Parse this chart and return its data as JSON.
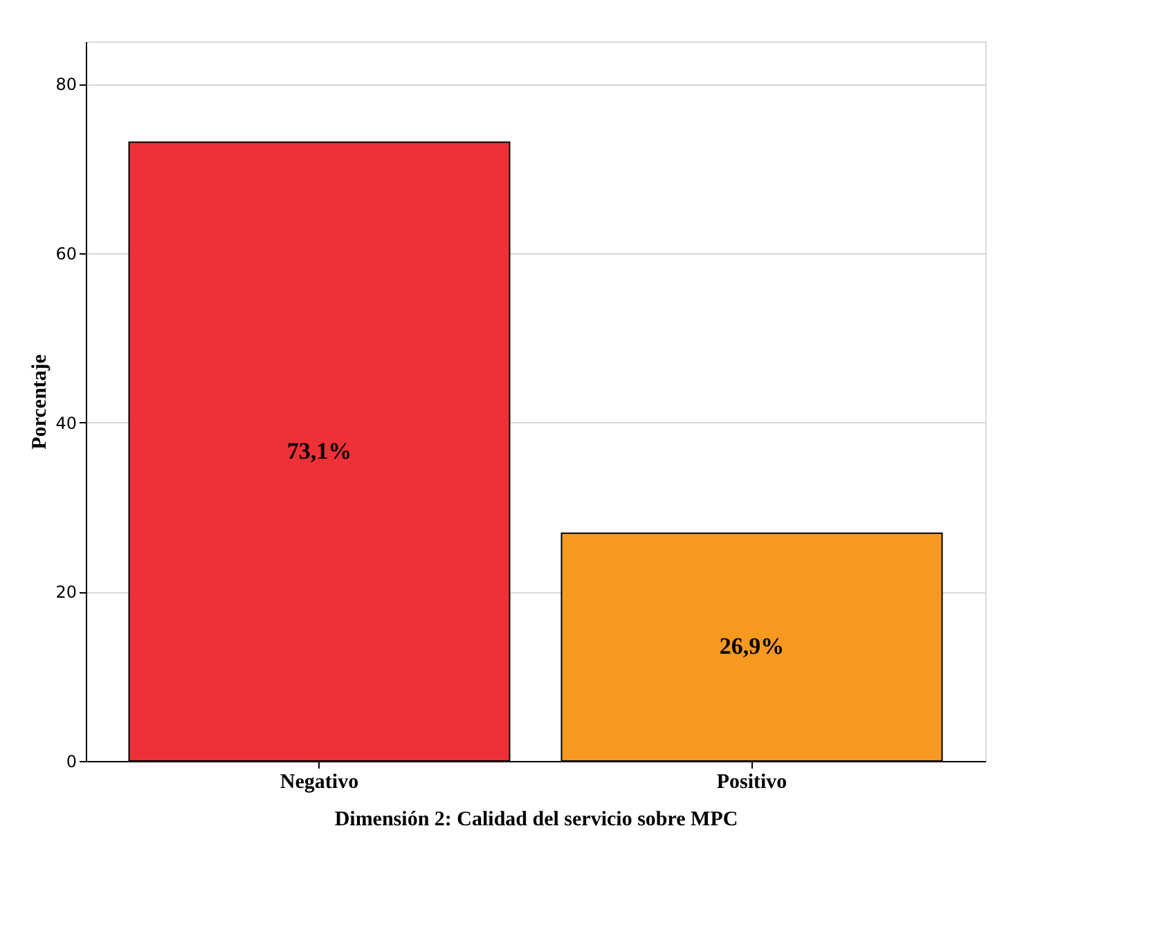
{
  "chart_data": {
    "type": "bar",
    "xlabel": "Dimensión 2: Calidad del servicio sobre MPC",
    "ylabel": "Porcentaje",
    "categories": [
      "Negativo",
      "Positivo"
    ],
    "values": [
      73.1,
      26.9
    ],
    "colors": [
      "#ee3138",
      "#f7981f"
    ],
    "value_labels": [
      "73,1%",
      "26,9%"
    ],
    "ylim": [
      0,
      85
    ],
    "yticks": [
      0,
      20,
      40,
      60,
      80
    ],
    "grid": "y"
  }
}
